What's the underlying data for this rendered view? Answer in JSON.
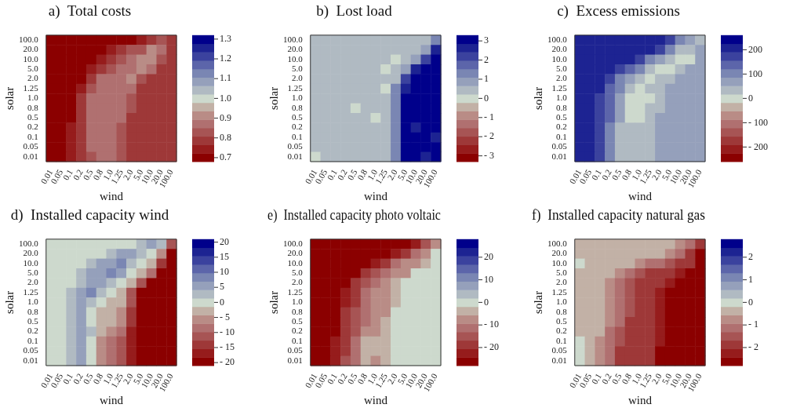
{
  "chart_data": [
    {
      "type": "heatmap",
      "title": "a)  Total costs",
      "xlabel": "wind",
      "ylabel": "solar",
      "categories": [
        "0.01",
        "0.05",
        "0.1",
        "0.2",
        "0.5",
        "0.8",
        "1.0",
        "1.25",
        "2.0",
        "5.0",
        "10.0",
        "20.0",
        "100.0"
      ],
      "y_categories": [
        "100.0",
        "20.0",
        "10.0",
        "5.0",
        "2.0",
        "1.25",
        "1.0",
        "0.8",
        "0.5",
        "0.2",
        "0.1",
        "0.05",
        "0.01"
      ],
      "clim": [
        0.68,
        1.32
      ],
      "cticks": [
        0.7,
        0.8,
        0.9,
        {
          "value": 1,
          "label": "1.0"
        },
        1.1,
        1.2,
        1.3
      ],
      "cells": [
        [
          0.69,
          0.69,
          0.69,
          0.69,
          0.69,
          0.69,
          0.69,
          0.69,
          0.69,
          0.73,
          0.77,
          0.84,
          0.79
        ],
        [
          0.69,
          0.69,
          0.69,
          0.69,
          0.69,
          0.69,
          0.73,
          0.77,
          0.81,
          0.85,
          0.9,
          0.88,
          0.79
        ],
        [
          0.69,
          0.69,
          0.69,
          0.69,
          0.69,
          0.74,
          0.78,
          0.82,
          0.86,
          0.9,
          0.92,
          0.85,
          0.79
        ],
        [
          0.69,
          0.69,
          0.69,
          0.69,
          0.75,
          0.8,
          0.85,
          0.88,
          0.89,
          0.92,
          0.86,
          0.8,
          0.79
        ],
        [
          0.69,
          0.69,
          0.69,
          0.72,
          0.78,
          0.88,
          0.88,
          0.89,
          0.92,
          0.82,
          0.79,
          0.79,
          0.79
        ],
        [
          0.69,
          0.69,
          0.69,
          0.75,
          0.84,
          0.88,
          0.88,
          0.88,
          0.86,
          0.79,
          0.79,
          0.79,
          0.79
        ],
        [
          0.69,
          0.69,
          0.71,
          0.77,
          0.86,
          0.88,
          0.88,
          0.88,
          0.84,
          0.79,
          0.79,
          0.79,
          0.79
        ],
        [
          0.69,
          0.69,
          0.71,
          0.77,
          0.86,
          0.88,
          0.88,
          0.88,
          0.82,
          0.79,
          0.79,
          0.79,
          0.79
        ],
        [
          0.69,
          0.69,
          0.72,
          0.78,
          0.86,
          0.88,
          0.88,
          0.86,
          0.8,
          0.79,
          0.79,
          0.79,
          0.79
        ],
        [
          0.69,
          0.69,
          0.73,
          0.79,
          0.87,
          0.88,
          0.88,
          0.85,
          0.8,
          0.79,
          0.79,
          0.79,
          0.79
        ],
        [
          0.69,
          0.69,
          0.73,
          0.79,
          0.87,
          0.88,
          0.88,
          0.83,
          0.8,
          0.79,
          0.79,
          0.79,
          0.79
        ],
        [
          0.69,
          0.69,
          0.73,
          0.79,
          0.86,
          0.88,
          0.86,
          0.84,
          0.8,
          0.79,
          0.79,
          0.79,
          0.79
        ],
        [
          0.69,
          0.69,
          0.73,
          0.78,
          0.85,
          0.88,
          0.87,
          0.84,
          0.8,
          0.79,
          0.79,
          0.79,
          0.79
        ]
      ]
    },
    {
      "type": "heatmap",
      "title": "b)  Lost load",
      "xlabel": "wind",
      "ylabel": "solar",
      "categories": [
        "0.01",
        "0.05",
        "0.1",
        "0.2",
        "0.5",
        "0.8",
        "1.0",
        "1.25",
        "2.0",
        "5.0",
        "10.0",
        "20.0",
        "100.0"
      ],
      "y_categories": [
        "100.0",
        "20.0",
        "10.0",
        "5.0",
        "2.0",
        "1.25",
        "1.0",
        "0.8",
        "0.5",
        "0.2",
        "0.1",
        "0.05",
        "0.01"
      ],
      "clim": [
        -3.3,
        3.3
      ],
      "cticks": [
        {
          "value": -3,
          "label": "- 3"
        },
        {
          "value": -2,
          "label": "- 2"
        },
        {
          "value": -1,
          "label": "- 1"
        },
        0,
        1,
        2,
        3
      ],
      "cells": [
        [
          0.4,
          0.4,
          0.4,
          0.4,
          0.4,
          0.4,
          0.4,
          0.4,
          0.4,
          0.4,
          0.4,
          0.4,
          1.5
        ],
        [
          0.4,
          0.4,
          0.4,
          0.4,
          0.4,
          0.4,
          0.4,
          0.4,
          0.4,
          0.4,
          0.4,
          1.0,
          2.8
        ],
        [
          0.4,
          0.4,
          0.4,
          0.4,
          0.4,
          0.4,
          0.4,
          0.4,
          0.1,
          0.4,
          0.9,
          2.2,
          3.0
        ],
        [
          0.4,
          0.4,
          0.4,
          0.4,
          0.4,
          0.4,
          0.4,
          0.1,
          0.4,
          1.0,
          2.5,
          3.0,
          3.0
        ],
        [
          0.4,
          0.4,
          0.4,
          0.4,
          0.4,
          0.4,
          0.4,
          0.4,
          0.6,
          2.4,
          3.0,
          3.0,
          3.0
        ],
        [
          0.4,
          0.4,
          0.4,
          0.4,
          0.4,
          0.4,
          0.4,
          0.1,
          1.2,
          2.8,
          3.0,
          3.0,
          3.0
        ],
        [
          0.4,
          0.4,
          0.4,
          0.4,
          0.4,
          0.4,
          0.4,
          0.4,
          1.5,
          3.0,
          3.0,
          3.0,
          3.0
        ],
        [
          0.4,
          0.4,
          0.4,
          0.4,
          0.1,
          0.4,
          0.4,
          0.4,
          1.5,
          3.0,
          3.0,
          3.0,
          3.0
        ],
        [
          0.4,
          0.4,
          0.4,
          0.4,
          0.4,
          0.4,
          0.1,
          0.4,
          1.5,
          3.0,
          3.0,
          3.0,
          3.0
        ],
        [
          0.4,
          0.4,
          0.4,
          0.4,
          0.4,
          0.4,
          0.4,
          0.4,
          1.5,
          3.0,
          2.7,
          3.0,
          3.0
        ],
        [
          0.4,
          0.4,
          0.4,
          0.4,
          0.4,
          0.4,
          0.4,
          0.4,
          1.5,
          3.0,
          3.0,
          3.0,
          2.6
        ],
        [
          0.4,
          0.4,
          0.4,
          0.4,
          0.4,
          0.4,
          0.4,
          0.4,
          1.5,
          3.0,
          3.0,
          3.0,
          3.0
        ],
        [
          0.1,
          0.4,
          0.4,
          0.4,
          0.4,
          0.4,
          0.4,
          0.4,
          1.5,
          3.0,
          3.0,
          2.6,
          3.0
        ]
      ]
    },
    {
      "type": "heatmap",
      "title": "c)  Excess emissions",
      "xlabel": "wind",
      "ylabel": "solar",
      "categories": [
        "0.01",
        "0.05",
        "0.1",
        "0.2",
        "0.5",
        "0.8",
        "1.0",
        "1.25",
        "2.0",
        "5.0",
        "10.0",
        "20.0",
        "100.0"
      ],
      "y_categories": [
        "100.0",
        "20.0",
        "10.0",
        "5.0",
        "2.0",
        "1.25",
        "1.0",
        "0.8",
        "0.5",
        "0.2",
        "0.1",
        "0.05",
        "0.01"
      ],
      "clim": [
        -260,
        260
      ],
      "cticks": [
        {
          "value": -200,
          "label": "- 200"
        },
        {
          "value": -100,
          "label": "- 100"
        },
        0,
        100,
        200
      ],
      "cells": [
        [
          210,
          210,
          210,
          210,
          210,
          210,
          210,
          210,
          210,
          175,
          120,
          60,
          50
        ],
        [
          210,
          210,
          210,
          210,
          210,
          210,
          210,
          210,
          160,
          110,
          45,
          30,
          70
        ],
        [
          210,
          210,
          210,
          210,
          210,
          210,
          160,
          120,
          80,
          30,
          10,
          10,
          70
        ],
        [
          210,
          210,
          210,
          210,
          170,
          130,
          90,
          30,
          10,
          10,
          30,
          70,
          70
        ],
        [
          210,
          210,
          210,
          165,
          120,
          60,
          30,
          10,
          20,
          40,
          70,
          70,
          70
        ],
        [
          210,
          210,
          210,
          150,
          90,
          35,
          10,
          20,
          35,
          70,
          70,
          70,
          70
        ],
        [
          210,
          210,
          190,
          140,
          80,
          10,
          5,
          15,
          40,
          70,
          70,
          70,
          70
        ],
        [
          210,
          210,
          190,
          140,
          70,
          10,
          5,
          20,
          45,
          70,
          70,
          70,
          70
        ],
        [
          210,
          210,
          185,
          130,
          60,
          10,
          15,
          35,
          55,
          70,
          70,
          70,
          70
        ],
        [
          210,
          210,
          180,
          120,
          45,
          35,
          35,
          40,
          70,
          70,
          70,
          70,
          70
        ],
        [
          210,
          210,
          180,
          120,
          45,
          35,
          35,
          40,
          70,
          70,
          70,
          70,
          70
        ],
        [
          210,
          210,
          170,
          110,
          40,
          35,
          35,
          40,
          70,
          70,
          70,
          70,
          70
        ],
        [
          210,
          200,
          160,
          100,
          35,
          35,
          35,
          45,
          70,
          70,
          70,
          70,
          70
        ]
      ]
    },
    {
      "type": "heatmap",
      "title": "d)  Installed capacity wind",
      "xlabel": "wind",
      "ylabel": "solar",
      "categories": [
        "0.01",
        "0.05",
        "0.1",
        "0.2",
        "0.5",
        "0.8",
        "1.0",
        "1.25",
        "2.0",
        "5.0",
        "10.0",
        "20.0",
        "100.0"
      ],
      "y_categories": [
        "100.0",
        "20.0",
        "10.0",
        "5.0",
        "2.0",
        "1.25",
        "1.0",
        "0.8",
        "0.5",
        "0.2",
        "0.1",
        "0.05",
        "0.01"
      ],
      "clim": [
        -21,
        21
      ],
      "cticks": [
        {
          "value": -20,
          "label": "- 20"
        },
        {
          "value": -15,
          "label": "- 15"
        },
        {
          "value": -10,
          "label": "- 10"
        },
        {
          "value": -5,
          "label": "- 5"
        },
        0,
        5,
        10,
        15,
        20
      ],
      "cells": [
        [
          0,
          0,
          0,
          0,
          0,
          0,
          0,
          0,
          0,
          3,
          6,
          3,
          -10
        ],
        [
          0,
          0,
          0,
          0,
          0,
          0,
          3,
          6,
          6,
          3,
          0,
          -5,
          -20
        ],
        [
          0,
          0,
          0,
          0,
          3,
          6,
          6,
          8.5,
          3,
          0,
          -3,
          -15,
          -20
        ],
        [
          0,
          0,
          0,
          3,
          6,
          6,
          8.5,
          6,
          0,
          -3,
          -8,
          -20,
          -20
        ],
        [
          0,
          0,
          0,
          3,
          6,
          6,
          3,
          0,
          -3,
          -12,
          -20,
          -20,
          -20
        ],
        [
          0,
          0,
          3,
          6,
          8.5,
          3,
          0,
          -3,
          -10,
          -20,
          -20,
          -20,
          -20
        ],
        [
          0,
          0,
          3,
          6,
          3,
          0,
          -3,
          -4,
          -12,
          -20,
          -20,
          -20,
          -20
        ],
        [
          0,
          0,
          3,
          6,
          0,
          -2,
          -3,
          -5,
          -14,
          -20,
          -20,
          -20,
          -20
        ],
        [
          0,
          0,
          3,
          6,
          0,
          -3,
          -3,
          -6,
          -15,
          -20,
          -20,
          -20,
          -20
        ],
        [
          0,
          0,
          3,
          6,
          3,
          -3,
          -6,
          -9,
          -16,
          -20,
          -20,
          -20,
          -20
        ],
        [
          0,
          0,
          3,
          6,
          0,
          -5,
          -9,
          -11,
          -17,
          -20,
          -20,
          -20,
          -20
        ],
        [
          0,
          0,
          3,
          6,
          0,
          -6,
          -9,
          -11,
          -17,
          -20,
          -20,
          -20,
          -20
        ],
        [
          0,
          1,
          4,
          6,
          -1,
          -7,
          -9,
          -12,
          -18,
          -20,
          -20,
          -20,
          -20
        ]
      ]
    },
    {
      "type": "heatmap",
      "title": "e)  Installed capacity photo voltaic",
      "xlabel": "wind",
      "ylabel": "solar",
      "categories": [
        "0.01",
        "0.05",
        "0.1",
        "0.2",
        "0.5",
        "0.8",
        "1.0",
        "1.25",
        "2.0",
        "5.0",
        "10.0",
        "20.0",
        "100.0"
      ],
      "y_categories": [
        "100.0",
        "20.0",
        "10.0",
        "5.0",
        "2.0",
        "1.25",
        "1.0",
        "0.8",
        "0.5",
        "0.2",
        "0.1",
        "0.05",
        "0.01"
      ],
      "clim": [
        -28,
        28
      ],
      "cticks": [
        {
          "value": -20,
          "label": "- 20"
        },
        {
          "value": -10,
          "label": "- 10"
        },
        0,
        10,
        20
      ],
      "cells": [
        [
          -26,
          -26,
          -26,
          -26,
          -26,
          -26,
          -26,
          -26,
          -26,
          -26,
          -22,
          -15,
          -8
        ],
        [
          -26,
          -26,
          -26,
          -26,
          -26,
          -26,
          -26,
          -26,
          -22,
          -17,
          -11,
          -6,
          0
        ],
        [
          -26,
          -26,
          -26,
          -26,
          -26,
          -26,
          -22,
          -17,
          -13,
          -8,
          -8,
          -2,
          0
        ],
        [
          -26,
          -26,
          -26,
          -26,
          -26,
          -20,
          -15,
          -11,
          -8,
          -6,
          0,
          0,
          0
        ],
        [
          -26,
          -26,
          -26,
          -26,
          -20,
          -14,
          -10,
          -8,
          -5,
          0,
          0,
          0,
          0
        ],
        [
          -26,
          -26,
          -26,
          -22,
          -17,
          -11,
          -8,
          -8,
          -3,
          0,
          0,
          0,
          0
        ],
        [
          -26,
          -26,
          -26,
          -22,
          -18,
          -10,
          -8,
          -8,
          -3,
          0,
          0,
          0,
          0
        ],
        [
          -26,
          -26,
          -26,
          -20,
          -15,
          -12,
          -8,
          -6,
          -1,
          0,
          0,
          0,
          0
        ],
        [
          -26,
          -26,
          -26,
          -20,
          -15,
          -10,
          -8,
          -5,
          0,
          0,
          0,
          0,
          0
        ],
        [
          -26,
          -26,
          -25,
          -19,
          -14,
          -8,
          -7,
          -4,
          0,
          0,
          0,
          0,
          0
        ],
        [
          -26,
          -26,
          -23,
          -18,
          -13,
          -5,
          -4,
          -3,
          0,
          0,
          0,
          0,
          0
        ],
        [
          -26,
          -26,
          -22,
          -17,
          -12,
          -4,
          -4,
          -3,
          0,
          0,
          0,
          0,
          0
        ],
        [
          -26,
          -26,
          -21,
          -16,
          -11,
          -5,
          -6,
          -3,
          0,
          0,
          0,
          0,
          0
        ]
      ]
    },
    {
      "type": "heatmap",
      "title": "f)  Installed capacity natural gas",
      "xlabel": "wind",
      "ylabel": "solar",
      "categories": [
        "0.01",
        "0.05",
        "0.1",
        "0.2",
        "0.5",
        "0.8",
        "1.0",
        "1.25",
        "2.0",
        "5.0",
        "10.0",
        "20.0",
        "100.0"
      ],
      "y_categories": [
        "100.0",
        "20.0",
        "10.0",
        "5.0",
        "2.0",
        "1.25",
        "1.0",
        "0.8",
        "0.5",
        "0.2",
        "0.1",
        "0.05",
        "0.01"
      ],
      "clim": [
        -2.8,
        2.8
      ],
      "cticks": [
        {
          "value": -2,
          "label": "- 2"
        },
        {
          "value": -1,
          "label": "- 1"
        },
        0,
        1,
        2
      ],
      "cells": [
        [
          -0.4,
          -0.4,
          -0.4,
          -0.4,
          -0.4,
          -0.4,
          -0.4,
          -0.4,
          -0.4,
          -0.4,
          -0.8,
          -1.3,
          -1.85
        ],
        [
          -0.4,
          -0.4,
          -0.4,
          -0.4,
          -0.4,
          -0.4,
          -0.4,
          -0.4,
          -0.4,
          -0.8,
          -1.2,
          -1.85,
          -2.6
        ],
        [
          -0.1,
          -0.4,
          -0.4,
          -0.4,
          -0.4,
          -0.4,
          -0.7,
          -1.0,
          -1.3,
          -1.6,
          -1.85,
          -1.9,
          -2.6
        ],
        [
          -0.4,
          -0.4,
          -0.4,
          -0.4,
          -0.7,
          -1.1,
          -1.4,
          -1.7,
          -1.85,
          -1.85,
          -2.2,
          -2.6,
          -2.6
        ],
        [
          -0.4,
          -0.4,
          -0.4,
          -0.6,
          -1.0,
          -1.4,
          -1.85,
          -1.85,
          -1.85,
          -2.2,
          -2.6,
          -2.6,
          -2.6
        ],
        [
          -0.4,
          -0.4,
          -0.4,
          -0.7,
          -1.2,
          -1.6,
          -1.85,
          -1.85,
          -2.1,
          -2.6,
          -2.6,
          -2.6,
          -2.6
        ],
        [
          -0.4,
          -0.4,
          -0.4,
          -0.6,
          -1.1,
          -1.6,
          -1.85,
          -1.85,
          -2.1,
          -2.6,
          -2.6,
          -2.6,
          -2.6
        ],
        [
          -0.4,
          -0.4,
          -0.4,
          -0.6,
          -1.1,
          -1.6,
          -1.85,
          -1.85,
          -2.3,
          -2.6,
          -2.6,
          -2.6,
          -2.6
        ],
        [
          -0.4,
          -0.4,
          -0.4,
          -0.8,
          -1.3,
          -1.85,
          -1.85,
          -1.85,
          -2.3,
          -2.6,
          -2.6,
          -2.6,
          -2.6
        ],
        [
          -0.4,
          -0.4,
          -0.5,
          -1.0,
          -1.5,
          -1.85,
          -1.85,
          -1.85,
          -2.3,
          -2.6,
          -2.6,
          -2.6,
          -2.6
        ],
        [
          -0.1,
          -0.4,
          -0.6,
          -1.1,
          -1.6,
          -1.85,
          -1.85,
          -1.85,
          -2.4,
          -2.6,
          -2.6,
          -2.6,
          -2.6
        ],
        [
          0,
          -0.3,
          -0.7,
          -1.2,
          -1.7,
          -1.85,
          -1.85,
          -1.85,
          -2.5,
          -2.6,
          -2.6,
          -2.6,
          -2.6
        ],
        [
          0,
          -0.4,
          -0.8,
          -1.3,
          -1.8,
          -1.85,
          -1.85,
          -1.85,
          -2.5,
          -2.6,
          -2.6,
          -2.6,
          -2.6
        ]
      ]
    }
  ]
}
